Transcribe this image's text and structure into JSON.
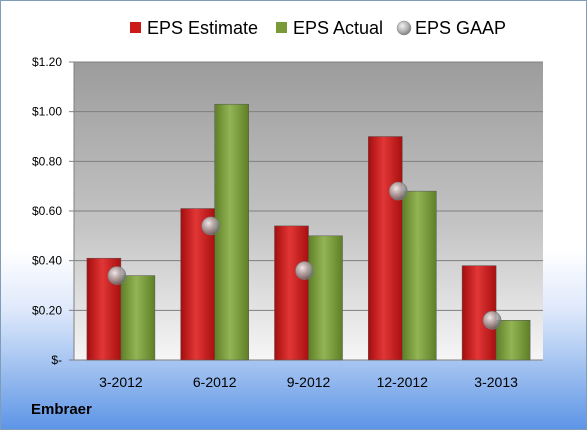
{
  "chart_data": {
    "type": "bar",
    "categories": [
      "3-2012",
      "6-2012",
      "9-2012",
      "12-2012",
      "3-2013"
    ],
    "series": [
      {
        "name": "EPS Estimate",
        "values": [
          0.41,
          0.61,
          0.54,
          0.9,
          0.38
        ],
        "color": "#cc1a1a"
      },
      {
        "name": "EPS Actual",
        "values": [
          0.34,
          1.03,
          0.5,
          0.68,
          0.16
        ],
        "color": "#7a9a3a"
      }
    ],
    "markers": {
      "name": "EPS GAAP",
      "values": [
        0.34,
        0.54,
        0.36,
        0.68,
        0.16
      ],
      "color": "#a0a0a0"
    },
    "ylim": [
      0,
      1.2
    ],
    "yticks": [
      0,
      0.2,
      0.4,
      0.6,
      0.8,
      1.0,
      1.2
    ],
    "ytick_labels": [
      "$-",
      "$0.20",
      "$0.40",
      "$0.60",
      "$0.80",
      "$1.00",
      "$1.20"
    ],
    "grid": true,
    "legend_position": "top"
  },
  "footer": {
    "company": "Embraer"
  }
}
